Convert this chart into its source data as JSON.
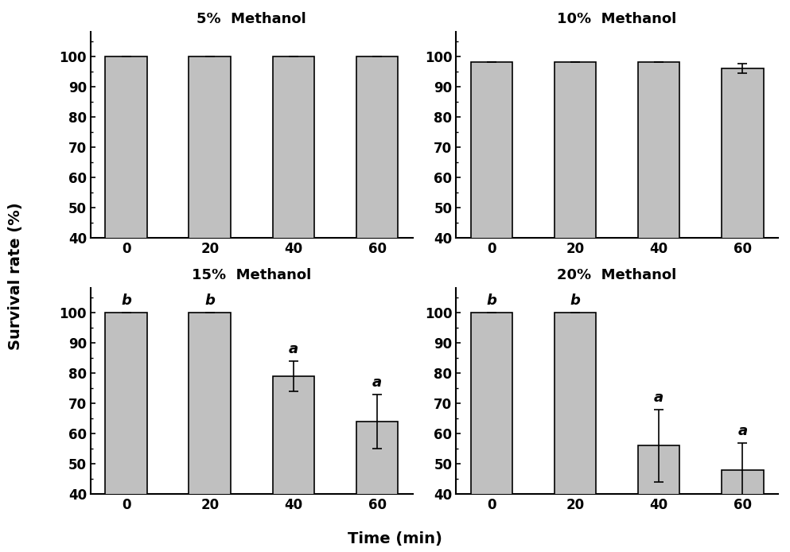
{
  "panels": [
    {
      "title": "5%  Methanol",
      "values": [
        100,
        100,
        100,
        100
      ],
      "errors": [
        0,
        0,
        0,
        0
      ],
      "letters": [
        "",
        "",
        "",
        ""
      ],
      "ylim": [
        40,
        108
      ],
      "yticks": [
        40,
        50,
        60,
        70,
        80,
        90,
        100
      ]
    },
    {
      "title": "10%  Methanol",
      "values": [
        98.0,
        98.0,
        98.0,
        96.0
      ],
      "errors": [
        0,
        0,
        0,
        1.5
      ],
      "letters": [
        "",
        "",
        "",
        ""
      ],
      "ylim": [
        40,
        108
      ],
      "yticks": [
        40,
        50,
        60,
        70,
        80,
        90,
        100
      ]
    },
    {
      "title": "15%  Methanol",
      "values": [
        100,
        100,
        79,
        64
      ],
      "errors": [
        0,
        0,
        5,
        9
      ],
      "letters": [
        "b",
        "b",
        "a",
        "a"
      ],
      "ylim": [
        40,
        108
      ],
      "yticks": [
        40,
        50,
        60,
        70,
        80,
        90,
        100
      ]
    },
    {
      "title": "20%  Methanol",
      "values": [
        100,
        100,
        56,
        48
      ],
      "errors": [
        0,
        0,
        12,
        9
      ],
      "letters": [
        "b",
        "b",
        "a",
        "a"
      ],
      "ylim": [
        40,
        108
      ],
      "yticks": [
        40,
        50,
        60,
        70,
        80,
        90,
        100
      ]
    }
  ],
  "xtick_labels": [
    "0",
    "20",
    "40",
    "60"
  ],
  "bar_color": "#c0c0c0",
  "bar_edgecolor": "#000000",
  "xlabel": "Time (min)",
  "ylabel": "Survival rate (%)",
  "bar_width": 0.5,
  "letter_fontsize": 13,
  "title_fontsize": 13,
  "axis_fontsize": 13,
  "tick_fontsize": 12,
  "figure_size": [
    9.93,
    6.94
  ],
  "dpi": 100
}
